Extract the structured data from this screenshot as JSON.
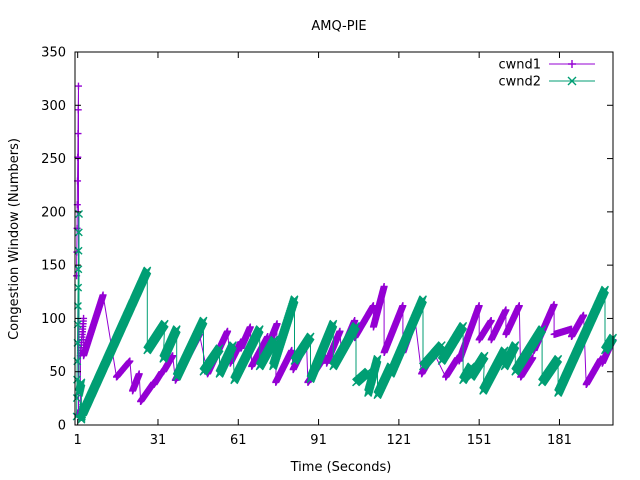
{
  "chart_data": {
    "type": "line",
    "title": "AMQ-PIE",
    "xlabel": "Time (Seconds)",
    "ylabel": "Congestion Window (Numbers)",
    "xlim": [
      0,
      201
    ],
    "ylim": [
      0,
      350
    ],
    "xticks": [
      1,
      31,
      61,
      91,
      121,
      151,
      181
    ],
    "yticks": [
      0,
      50,
      100,
      150,
      200,
      250,
      300,
      350
    ],
    "grid": false,
    "legend_position": "top-right",
    "series": [
      {
        "name": "cwnd1",
        "color": "#9400d3",
        "marker": "plus",
        "sawtooth": [
          [
            0.6,
            140,
            1.3,
            318
          ],
          [
            1.3,
            8,
            2.0,
            14
          ],
          [
            2.0,
            65,
            3.2,
            100
          ],
          [
            3.2,
            65,
            10.5,
            122
          ],
          [
            15.5,
            45,
            20.5,
            60
          ],
          [
            21.5,
            32,
            24.0,
            48
          ],
          [
            24.5,
            22,
            29.5,
            40
          ],
          [
            29.5,
            38,
            32.5,
            50
          ],
          [
            33.0,
            50,
            36.5,
            65
          ],
          [
            37.5,
            42,
            46.5,
            85
          ],
          [
            49.5,
            48,
            57.0,
            88
          ],
          [
            58.0,
            58,
            62.0,
            78
          ],
          [
            62.0,
            72,
            65.5,
            92
          ],
          [
            66.0,
            55,
            72.0,
            83
          ],
          [
            71.5,
            70,
            75.5,
            95
          ],
          [
            75.0,
            40,
            81.0,
            70
          ],
          [
            81.5,
            52,
            86.5,
            78
          ],
          [
            87.0,
            40,
            93.5,
            65
          ],
          [
            94.0,
            58,
            99.0,
            88
          ],
          [
            99.5,
            68,
            104.5,
            98
          ],
          [
            104.5,
            82,
            111.5,
            112
          ],
          [
            111.5,
            92,
            115.5,
            130
          ],
          [
            115.5,
            68,
            122.5,
            112
          ],
          [
            122.5,
            68,
            127.0,
            100
          ],
          [
            129.5,
            48,
            134.0,
            68
          ],
          [
            138.5,
            45,
            143.0,
            63
          ],
          [
            143.5,
            60,
            151.0,
            112
          ],
          [
            151.0,
            80,
            155.5,
            98
          ],
          [
            155.5,
            80,
            161.0,
            108
          ],
          [
            161.0,
            85,
            166.0,
            112
          ],
          [
            166.5,
            45,
            171.0,
            63
          ],
          [
            171.5,
            70,
            179.0,
            113
          ],
          [
            179.0,
            85,
            185.5,
            90
          ],
          [
            185.5,
            83,
            190.0,
            103
          ],
          [
            191.0,
            38,
            196.5,
            62
          ],
          [
            197.0,
            58,
            201.0,
            80
          ]
        ]
      },
      {
        "name": "cwnd2",
        "color": "#009e73",
        "marker": "cross",
        "sawtooth": [
          [
            0.6,
            8,
            1.5,
            198
          ],
          [
            1.5,
            30,
            2.4,
            40
          ],
          [
            2.4,
            5,
            3.1,
            18
          ],
          [
            3.1,
            12,
            27.0,
            145
          ],
          [
            27.0,
            70,
            33.5,
            95
          ],
          [
            33.0,
            62,
            38.0,
            90
          ],
          [
            38.0,
            45,
            48.0,
            98
          ],
          [
            48.0,
            50,
            54.0,
            72
          ],
          [
            54.0,
            48,
            59.0,
            75
          ],
          [
            59.5,
            42,
            69.0,
            90
          ],
          [
            69.0,
            55,
            74.5,
            80
          ],
          [
            74.0,
            55,
            82.0,
            118
          ],
          [
            82.0,
            60,
            88.0,
            83
          ],
          [
            88.0,
            43,
            96.5,
            95
          ],
          [
            96.5,
            55,
            105.0,
            93
          ],
          [
            105.0,
            40,
            109.5,
            50
          ],
          [
            109.5,
            30,
            113.0,
            62
          ],
          [
            113.0,
            28,
            118.0,
            55
          ],
          [
            118.0,
            48,
            130.0,
            118
          ],
          [
            130.0,
            55,
            137.0,
            75
          ],
          [
            137.0,
            60,
            145.0,
            93
          ],
          [
            145.0,
            42,
            148.0,
            55
          ],
          [
            148.0,
            45,
            153.0,
            65
          ],
          [
            152.5,
            32,
            160.5,
            70
          ],
          [
            160.5,
            55,
            164.5,
            75
          ],
          [
            164.5,
            50,
            174.5,
            90
          ],
          [
            174.5,
            40,
            180.5,
            62
          ],
          [
            180.5,
            30,
            198.0,
            127
          ],
          [
            198.0,
            70,
            201.0,
            82
          ]
        ]
      }
    ]
  }
}
